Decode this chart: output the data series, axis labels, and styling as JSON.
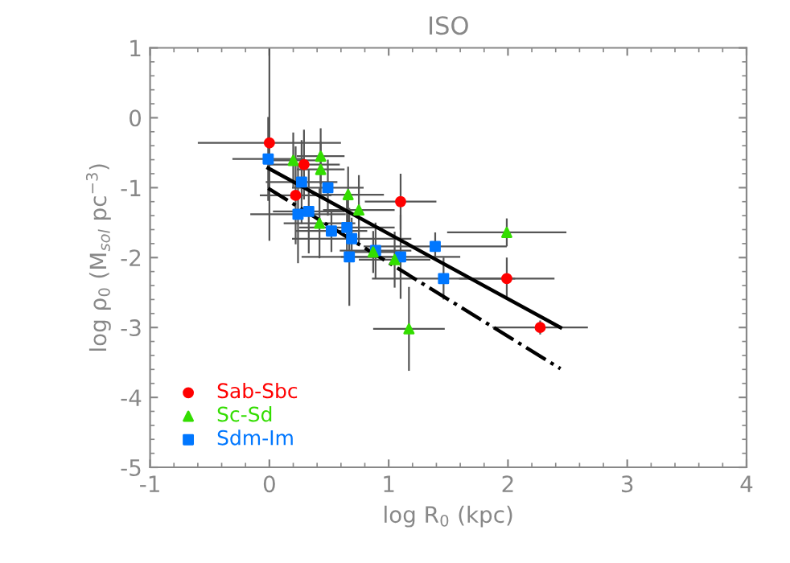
{
  "chart_data": {
    "type": "scatter",
    "title": "ISO",
    "xlabel": "log R$_{0}$ (kpc)",
    "ylabel": "log ρ$_{0}$ (M$_{sol}$ pc$^{−3}$)",
    "xlim": [
      -1,
      4
    ],
    "ylim": [
      -5,
      1
    ],
    "xticks": [
      -1,
      0,
      1,
      2,
      3,
      4
    ],
    "yticks": [
      -5,
      -4,
      -3,
      -2,
      -1,
      0,
      1
    ],
    "legend": "bottom left",
    "grid": false,
    "series": [
      {
        "name": "Sab-Sbc",
        "color": "#ff0000",
        "marker": "circle",
        "x": [
          0,
          0.29,
          0.22,
          1.1,
          1.99,
          2.27
        ],
        "values": [
          -0.36,
          -0.67,
          -1.11,
          -1.2,
          -2.3,
          -3.0
        ],
        "xerrors": [
          0.6,
          0.3,
          0.3,
          0.3,
          0.4,
          0.4
        ],
        "errors": [
          1.4,
          0.5,
          0.7,
          0.4,
          0.3,
          0.1
        ]
      },
      {
        "name": "Sc-Sd",
        "color": "#33dd00",
        "marker": "triangle",
        "x": [
          0.2,
          0.43,
          0.43,
          0.66,
          0.75,
          0.42,
          1.99,
          1.05,
          1.17,
          0.87
        ],
        "values": [
          -0.61,
          -0.55,
          -0.74,
          -1.1,
          -1.32,
          -1.51,
          -1.64,
          -2.03,
          -3.02,
          -1.92
        ],
        "xerrors": [
          0.2,
          0.2,
          0.2,
          0.3,
          0.3,
          0.3,
          0.5,
          0.3,
          0.3,
          0.2
        ],
        "errors": [
          0.4,
          0.4,
          0.4,
          0.4,
          0.5,
          0.5,
          0.2,
          0.4,
          0.6,
          0.3
        ]
      },
      {
        "name": "Sdm-Im",
        "color": "#0077ff",
        "marker": "square",
        "x": [
          -0.01,
          0.27,
          0.49,
          0.24,
          0.33,
          0.52,
          0.65,
          0.69,
          0.67,
          0.89,
          1.1,
          1.39,
          1.46
        ],
        "values": [
          -0.59,
          -0.92,
          -1.0,
          -1.38,
          -1.34,
          -1.62,
          -1.57,
          -1.73,
          -1.99,
          -1.9,
          -1.99,
          -1.84,
          -2.3
        ],
        "xerrors": [
          0.3,
          0.3,
          0.3,
          0.4,
          0.3,
          0.3,
          0.4,
          0.5,
          0.4,
          0.3,
          0.5,
          0.6,
          0.6
        ],
        "errors": [
          0.6,
          0.6,
          0.4,
          0.7,
          0.6,
          0.3,
          0.4,
          0.3,
          0.7,
          0.4,
          0.6,
          0.2,
          0.3
        ]
      },
      {
        "type": "line",
        "color": "#000000",
        "line_style": "solid",
        "x": [
          -0.01,
          2.44
        ],
        "values": [
          -0.72,
          -3.0
        ]
      },
      {
        "type": "line",
        "color": "#000000",
        "line_style": "dashdot",
        "x": [
          -0.01,
          2.44
        ],
        "values": [
          -1.01,
          -3.59
        ]
      }
    ]
  }
}
